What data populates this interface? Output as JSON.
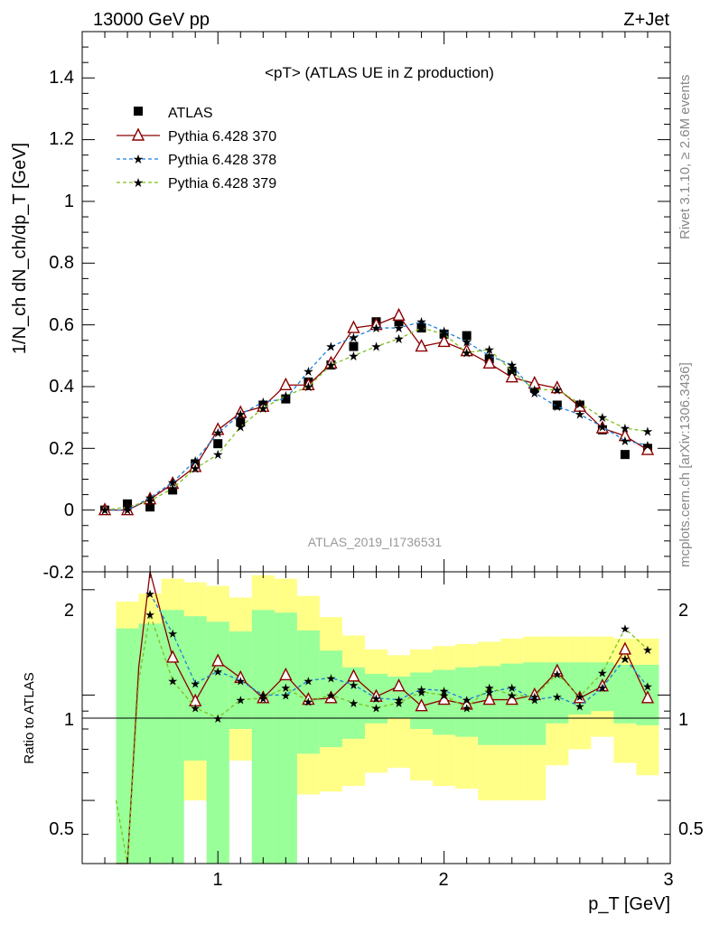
{
  "header": {
    "left": "13000 GeV pp",
    "right": "Z+Jet"
  },
  "side_labels": {
    "rivet": "Rivet 3.1.10, ≥ 2.6M events",
    "source": "mcplots.cern.ch [arXiv:1306.3436]"
  },
  "plot_title": "<pT> (ATLAS UE in Z production)",
  "analysis_id": "ATLAS_2019_I1736531",
  "legend_entries": [
    "ATLAS",
    "Pythia 6.428 370",
    "Pythia 6.428 378",
    "Pythia 6.428 379"
  ],
  "colors": {
    "data": "#000000",
    "p370": "#8b0000",
    "p378": "#1f7fd9",
    "p379": "#7fbf1f",
    "band_inner": "#99ff99",
    "band_outer": "#ffff88"
  },
  "chart_data": [
    {
      "type": "scatter",
      "xlabel": "p_T [GeV]",
      "ylabel": "1/N_ch dN_ch/dp_T [GeV]",
      "xlim": [
        0.4,
        3.0
      ],
      "ylim": [
        -0.2,
        1.55
      ],
      "x_ticks": [
        "1",
        "2",
        "3"
      ],
      "y_ticks": [
        "0",
        "0.2",
        "0.4",
        "0.6",
        "0.8",
        "1",
        "1.2",
        "1.4",
        "-0.2"
      ],
      "x": [
        0.5,
        0.6,
        0.7,
        0.8,
        0.9,
        1.0,
        1.1,
        1.2,
        1.3,
        1.4,
        1.5,
        1.6,
        1.7,
        1.8,
        1.9,
        2.0,
        2.1,
        2.2,
        2.3,
        2.4,
        2.5,
        2.6,
        2.7,
        2.8,
        2.9
      ],
      "series": [
        {
          "name": "ATLAS",
          "marker": "square",
          "values": [
            0.0,
            0.02,
            0.01,
            0.065,
            0.15,
            0.215,
            0.285,
            0.34,
            0.36,
            0.415,
            0.47,
            0.53,
            0.61,
            0.61,
            0.59,
            0.57,
            0.565,
            0.49,
            0.45,
            0.395,
            0.34,
            0.34,
            0.26,
            0.18,
            0.2
          ]
        },
        {
          "name": "Pythia 6.428 370",
          "marker": "triangle",
          "line": "solid",
          "values": [
            0.0,
            0.0,
            0.035,
            0.085,
            0.14,
            0.26,
            0.315,
            0.335,
            0.405,
            0.405,
            0.475,
            0.59,
            0.6,
            0.63,
            0.53,
            0.545,
            0.515,
            0.475,
            0.43,
            0.41,
            0.395,
            0.335,
            0.265,
            0.24,
            0.195
          ]
        },
        {
          "name": "Pythia 6.428 378",
          "marker": "star",
          "line": "dashed",
          "values": [
            0.0,
            0.0,
            0.04,
            0.09,
            0.16,
            0.25,
            0.31,
            0.35,
            0.36,
            0.45,
            0.53,
            0.56,
            0.59,
            0.59,
            0.61,
            0.58,
            0.545,
            0.5,
            0.47,
            0.38,
            0.335,
            0.31,
            0.27,
            0.225,
            0.21
          ]
        },
        {
          "name": "Pythia 6.428 379",
          "marker": "star",
          "line": "dashed",
          "values": [
            0.0,
            0.01,
            0.03,
            0.07,
            0.135,
            0.18,
            0.27,
            0.33,
            0.37,
            0.4,
            0.47,
            0.5,
            0.53,
            0.555,
            0.59,
            0.57,
            0.51,
            0.52,
            0.45,
            0.39,
            0.39,
            0.345,
            0.3,
            0.265,
            0.255
          ]
        }
      ]
    },
    {
      "type": "line",
      "ylabel": "Ratio to ATLAS",
      "xlim": [
        0.4,
        3.0
      ],
      "ylim": [
        0.33,
        2.25
      ],
      "y_ticks": [
        "0.5",
        "1",
        "2"
      ],
      "bands": {
        "x_edges": [
          0.55,
          0.65,
          0.75,
          0.85,
          0.95,
          1.05,
          1.15,
          1.25,
          1.35,
          1.45,
          1.55,
          1.65,
          1.75,
          1.85,
          1.95,
          2.05,
          2.15,
          2.25,
          2.35,
          2.45,
          2.55,
          2.65,
          2.75,
          2.85,
          2.95
        ],
        "outer_low": [
          0.33,
          0.33,
          0.33,
          0.5,
          0.33,
          0.65,
          0.33,
          0.33,
          0.52,
          0.53,
          0.55,
          0.6,
          0.62,
          0.57,
          0.55,
          0.54,
          0.5,
          0.5,
          0.5,
          0.63,
          0.7,
          0.76,
          0.64,
          0.59
        ],
        "outer_high": [
          1.85,
          1.95,
          2.15,
          2.1,
          2.05,
          1.9,
          2.2,
          2.15,
          1.92,
          1.67,
          1.48,
          1.35,
          1.3,
          1.35,
          1.38,
          1.4,
          1.42,
          1.45,
          1.47,
          1.47,
          1.47,
          1.47,
          1.45,
          1.45
        ],
        "inner_low": [
          0.33,
          0.33,
          0.33,
          0.65,
          0.33,
          0.8,
          0.33,
          0.33,
          0.68,
          0.71,
          0.75,
          0.83,
          0.86,
          0.8,
          0.77,
          0.76,
          0.72,
          0.72,
          0.72,
          0.83,
          0.88,
          0.9,
          0.83,
          0.82
        ],
        "inner_high": [
          1.55,
          1.6,
          1.75,
          1.68,
          1.62,
          1.52,
          1.75,
          1.72,
          1.53,
          1.34,
          1.2,
          1.15,
          1.13,
          1.16,
          1.18,
          1.2,
          1.21,
          1.23,
          1.24,
          1.24,
          1.24,
          1.24,
          1.22,
          1.22
        ]
      },
      "x": [
        0.7,
        0.8,
        0.9,
        1.0,
        1.1,
        1.2,
        1.3,
        1.4,
        1.5,
        1.6,
        1.7,
        1.8,
        1.9,
        2.0,
        2.1,
        2.2,
        2.3,
        2.4,
        2.5,
        2.6,
        2.7,
        2.8,
        2.9
      ],
      "series": [
        {
          "name": "Pythia 6.428 370",
          "values": [
            2.3,
            1.28,
            0.96,
            1.25,
            1.12,
            0.98,
            1.14,
            0.97,
            0.98,
            1.13,
            0.99,
            1.06,
            0.93,
            0.97,
            0.94,
            0.97,
            0.97,
            1.0,
            1.17,
            0.98,
            1.06,
            1.35,
            0.98
          ]
        },
        {
          "name": "Pythia 6.428 378",
          "values": [
            1.95,
            1.5,
            1.08,
            1.17,
            1.1,
            1.0,
            1.0,
            1.1,
            1.12,
            1.07,
            0.98,
            0.97,
            1.04,
            1.03,
            0.97,
            1.02,
            1.05,
            0.97,
            0.99,
            0.93,
            1.05,
            1.27,
            1.06
          ]
        },
        {
          "name": "Pythia 6.428 379",
          "values": [
            1.7,
            1.1,
            0.92,
            0.86,
            0.97,
            0.98,
            1.05,
            0.96,
            1.0,
            0.95,
            0.92,
            0.95,
            1.02,
            1.0,
            0.92,
            1.05,
            1.0,
            0.99,
            1.15,
            0.99,
            1.16,
            1.55,
            1.35
          ]
        }
      ],
      "lead_in": {
        "x": [
          0.55,
          0.6,
          0.65
        ],
        "p370": [
          0.33,
          0.33,
          1.2
        ],
        "p379": [
          0.5,
          0.33,
          1.1
        ]
      }
    }
  ]
}
